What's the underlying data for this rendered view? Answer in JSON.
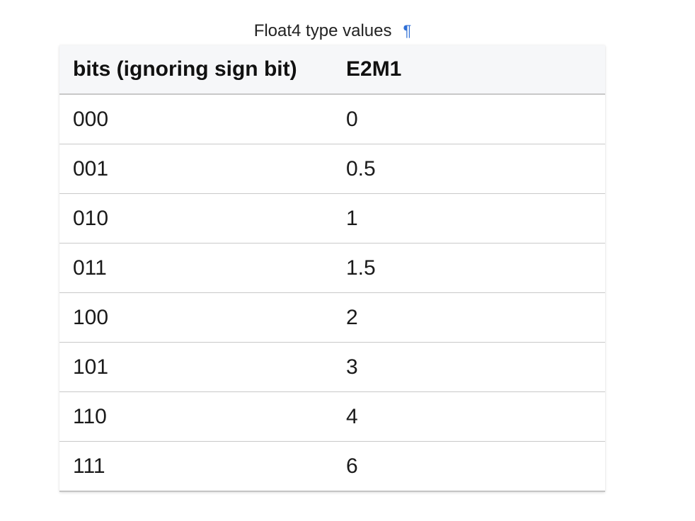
{
  "caption": {
    "title": "Float4 type values",
    "anchor_symbol": "¶"
  },
  "table": {
    "headers": [
      "bits (ignoring sign bit)",
      "E2M1"
    ],
    "rows": [
      [
        "000",
        "0"
      ],
      [
        "001",
        "0.5"
      ],
      [
        "010",
        "1"
      ],
      [
        "011",
        "1.5"
      ],
      [
        "100",
        "2"
      ],
      [
        "101",
        "3"
      ],
      [
        "110",
        "4"
      ],
      [
        "111",
        "6"
      ]
    ]
  },
  "colors": {
    "anchor_link": "#2f6fd6",
    "header_background": "#f6f7f9"
  }
}
